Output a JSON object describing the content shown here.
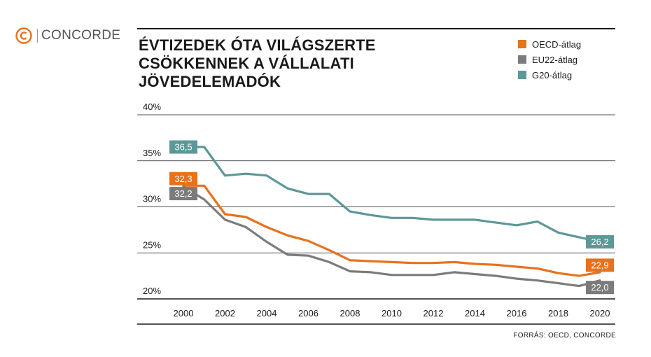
{
  "logo": {
    "text": "CONCORDE",
    "color": "#e8711c"
  },
  "title_lines": [
    "ÉVTIZEDEK ÓTA VILÁGSZERTE",
    "CSÖKKENNEK A VÁLLALATI",
    "JÖVEDELEMADÓK"
  ],
  "source": "FORRÁS: OECD, CONCORDE",
  "chart_data": {
    "type": "line",
    "title": "ÉVTIZEDEK ÓTA VILÁGSZERTE CSÖKKENNEK A VÁLLALATI JÖVEDELEMADÓK",
    "xlim": [
      2000,
      2020
    ],
    "ylim": [
      20,
      40
    ],
    "yticks": [
      40,
      35,
      30,
      25,
      20
    ],
    "ytick_labels": [
      "40%",
      "35%",
      "30%",
      "25%",
      "20%"
    ],
    "xticks": [
      2000,
      2002,
      2004,
      2006,
      2008,
      2010,
      2012,
      2014,
      2016,
      2018,
      2020
    ],
    "xtick_labels": [
      "2000",
      "2002",
      "2004",
      "2006",
      "2008",
      "2010",
      "2012",
      "2014",
      "2016",
      "2018",
      "2020"
    ],
    "grid": "horizontal",
    "legend_position": "top-right",
    "x": [
      2000,
      2001,
      2002,
      2003,
      2004,
      2005,
      2006,
      2007,
      2008,
      2009,
      2010,
      2011,
      2012,
      2013,
      2014,
      2015,
      2016,
      2017,
      2018,
      2019,
      2020
    ],
    "series": [
      {
        "name": "OECD-átlag",
        "color": "#e8711c",
        "values": [
          32.3,
          32.3,
          29.2,
          28.9,
          27.8,
          26.9,
          26.3,
          25.3,
          24.2,
          24.1,
          24.0,
          23.9,
          23.9,
          24.0,
          23.8,
          23.7,
          23.5,
          23.3,
          22.8,
          22.5,
          22.9
        ],
        "start_label": "32,3",
        "end_label": "22,9"
      },
      {
        "name": "EU22-átlag",
        "color": "#7b7b7b",
        "values": [
          32.2,
          30.8,
          28.6,
          27.8,
          26.2,
          24.8,
          24.7,
          24.0,
          23.0,
          22.9,
          22.6,
          22.6,
          22.6,
          22.9,
          22.7,
          22.5,
          22.2,
          22.0,
          21.7,
          21.4,
          22.0
        ],
        "start_label": "32,2",
        "end_label": "22,0"
      },
      {
        "name": "G20-átlag",
        "color": "#5c9897",
        "values": [
          36.5,
          36.5,
          33.4,
          33.6,
          33.4,
          32.0,
          31.4,
          31.4,
          29.5,
          29.1,
          28.8,
          28.8,
          28.6,
          28.6,
          28.6,
          28.3,
          28.0,
          28.4,
          27.2,
          26.7,
          26.2
        ],
        "start_label": "36,5",
        "end_label": "26,2"
      }
    ]
  }
}
